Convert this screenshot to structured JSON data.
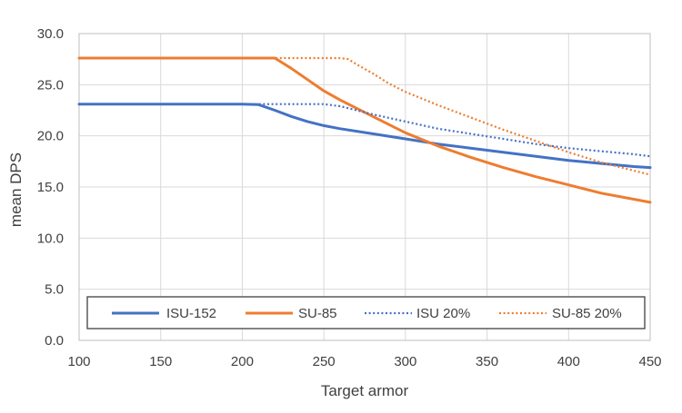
{
  "chart_data": {
    "type": "line",
    "title": "",
    "xlabel": "Target armor",
    "ylabel": "mean DPS",
    "xlim": [
      100,
      450
    ],
    "ylim": [
      0,
      30
    ],
    "x_ticks": [
      "100",
      "150",
      "200",
      "250",
      "300",
      "350",
      "400",
      "450"
    ],
    "y_ticks": [
      "0.0",
      "5.0",
      "10.0",
      "15.0",
      "20.0",
      "25.0",
      "30.0"
    ],
    "grid": true,
    "legend_position": "bottom",
    "series": [
      {
        "name": "ISU-152",
        "color": "#4472C4",
        "style": "solid",
        "points": [
          [
            100,
            23.1
          ],
          [
            200,
            23.1
          ],
          [
            210,
            23.05
          ],
          [
            220,
            22.5
          ],
          [
            230,
            21.9
          ],
          [
            240,
            21.4
          ],
          [
            250,
            21.0
          ],
          [
            260,
            20.7
          ],
          [
            280,
            20.2
          ],
          [
            300,
            19.7
          ],
          [
            320,
            19.2
          ],
          [
            340,
            18.8
          ],
          [
            360,
            18.4
          ],
          [
            380,
            18.0
          ],
          [
            400,
            17.6
          ],
          [
            420,
            17.3
          ],
          [
            440,
            17.0
          ],
          [
            450,
            16.9
          ]
        ]
      },
      {
        "name": "SU-85",
        "color": "#ED7D31",
        "style": "solid",
        "points": [
          [
            100,
            27.6
          ],
          [
            220,
            27.6
          ],
          [
            230,
            26.6
          ],
          [
            240,
            25.5
          ],
          [
            250,
            24.4
          ],
          [
            260,
            23.5
          ],
          [
            270,
            22.7
          ],
          [
            280,
            21.9
          ],
          [
            290,
            21.1
          ],
          [
            300,
            20.3
          ],
          [
            320,
            19.0
          ],
          [
            340,
            17.9
          ],
          [
            360,
            16.9
          ],
          [
            380,
            16.0
          ],
          [
            400,
            15.2
          ],
          [
            420,
            14.4
          ],
          [
            440,
            13.8
          ],
          [
            450,
            13.5
          ]
        ]
      },
      {
        "name": "ISU 20%",
        "color": "#4472C4",
        "style": "dotted",
        "points": [
          [
            100,
            23.1
          ],
          [
            250,
            23.1
          ],
          [
            260,
            22.9
          ],
          [
            270,
            22.5
          ],
          [
            280,
            22.1
          ],
          [
            300,
            21.4
          ],
          [
            320,
            20.7
          ],
          [
            340,
            20.2
          ],
          [
            360,
            19.7
          ],
          [
            380,
            19.2
          ],
          [
            400,
            18.8
          ],
          [
            420,
            18.5
          ],
          [
            440,
            18.2
          ],
          [
            450,
            18.0
          ]
        ]
      },
      {
        "name": "SU-85 20%",
        "color": "#ED7D31",
        "style": "dotted",
        "points": [
          [
            100,
            27.6
          ],
          [
            260,
            27.6
          ],
          [
            265,
            27.5
          ],
          [
            270,
            27.0
          ],
          [
            280,
            26.1
          ],
          [
            290,
            25.1
          ],
          [
            300,
            24.3
          ],
          [
            320,
            23.0
          ],
          [
            340,
            21.8
          ],
          [
            360,
            20.6
          ],
          [
            380,
            19.5
          ],
          [
            400,
            18.4
          ],
          [
            420,
            17.4
          ],
          [
            440,
            16.6
          ],
          [
            450,
            16.2
          ]
        ]
      }
    ]
  }
}
